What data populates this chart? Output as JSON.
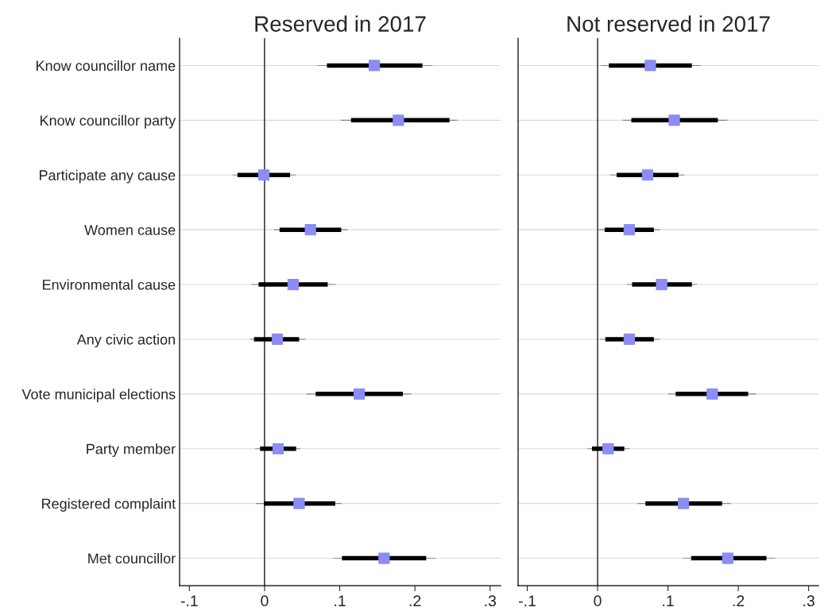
{
  "chart_data": [
    {
      "type": "scatter",
      "orientation": "horizontal",
      "title": "Reserved in 2017",
      "categories": [
        "Know councillor name",
        "Know councillor party",
        "Participate any cause",
        "Women cause",
        "Environmental cause",
        "Any civic action",
        "Vote municipal elections",
        "Party member",
        "Registered complaint",
        "Met councillor"
      ],
      "xlim": [
        -0.113,
        0.314
      ],
      "xticks": [
        {
          "value": -0.1,
          "label": "-.1"
        },
        {
          "value": 0,
          "label": "0"
        },
        {
          "value": 0.1,
          "label": ".1"
        },
        {
          "value": 0.2,
          "label": ".2"
        },
        {
          "value": 0.3,
          "label": ".3"
        }
      ],
      "grid": "y",
      "marker": "square",
      "ref_lines": [
        {
          "axis": "x",
          "value": 0,
          "color": "#000000"
        }
      ],
      "series": [
        {
          "type": "bar",
          "color": "#000000",
          "base": [
            0.083,
            0.115,
            -0.036,
            0.02,
            -0.008,
            -0.014,
            0.068,
            -0.006,
            -0.001,
            0.103
          ],
          "values": [
            0.127,
            0.131,
            0.07,
            0.082,
            0.092,
            0.06,
            0.116,
            0.048,
            0.095,
            0.112
          ]
        },
        {
          "color": "#8c8cf5",
          "values": [
            0.146,
            0.178,
            -0.001,
            0.061,
            0.038,
            0.017,
            0.126,
            0.018,
            0.046,
            0.159
          ],
          "errors": [
            [
              0.071,
              0.223
            ],
            [
              0.102,
              0.256
            ],
            [
              -0.042,
              0.041
            ],
            [
              0.013,
              0.11
            ],
            [
              -0.017,
              0.094
            ],
            [
              -0.019,
              0.054
            ],
            [
              0.056,
              0.195
            ],
            [
              -0.012,
              0.047
            ],
            [
              -0.011,
              0.102
            ],
            [
              0.092,
              0.227
            ]
          ]
        }
      ]
    },
    {
      "type": "scatter",
      "orientation": "horizontal",
      "title": "Not reserved in 2017",
      "categories": [
        null,
        null,
        null,
        null,
        null,
        null,
        null,
        null,
        null,
        null
      ],
      "tick_labels": "x",
      "xlim": [
        -0.113,
        0.314
      ],
      "xticks": [
        {
          "value": -0.1,
          "label": "-.1"
        },
        {
          "value": 0,
          "label": "0"
        },
        {
          "value": 0.1,
          "label": ".1"
        },
        {
          "value": 0.2,
          "label": ".2"
        },
        {
          "value": 0.3,
          "label": ".3"
        }
      ],
      "grid": "y",
      "marker": "square",
      "ref_lines": [
        {
          "axis": "x",
          "value": 0,
          "color": "#000000"
        }
      ],
      "series": [
        {
          "type": "bar",
          "color": "#000000",
          "base": [
            0.016,
            0.048,
            0.027,
            0.01,
            0.049,
            0.011,
            0.111,
            -0.008,
            0.068,
            0.133
          ],
          "values": [
            0.118,
            0.123,
            0.088,
            0.07,
            0.085,
            0.069,
            0.103,
            0.046,
            0.109,
            0.107
          ]
        },
        {
          "color": "#8c8cf5",
          "values": [
            0.075,
            0.109,
            0.071,
            0.045,
            0.091,
            0.045,
            0.163,
            0.015,
            0.122,
            0.185
          ],
          "errors": [
            [
              0.005,
              0.146
            ],
            [
              0.036,
              0.184
            ],
            [
              0.018,
              0.123
            ],
            [
              0.002,
              0.088
            ],
            [
              0.042,
              0.141
            ],
            [
              0.004,
              0.088
            ],
            [
              0.101,
              0.225
            ],
            [
              -0.014,
              0.045
            ],
            [
              0.057,
              0.189
            ],
            [
              0.122,
              0.252
            ]
          ]
        }
      ]
    }
  ]
}
